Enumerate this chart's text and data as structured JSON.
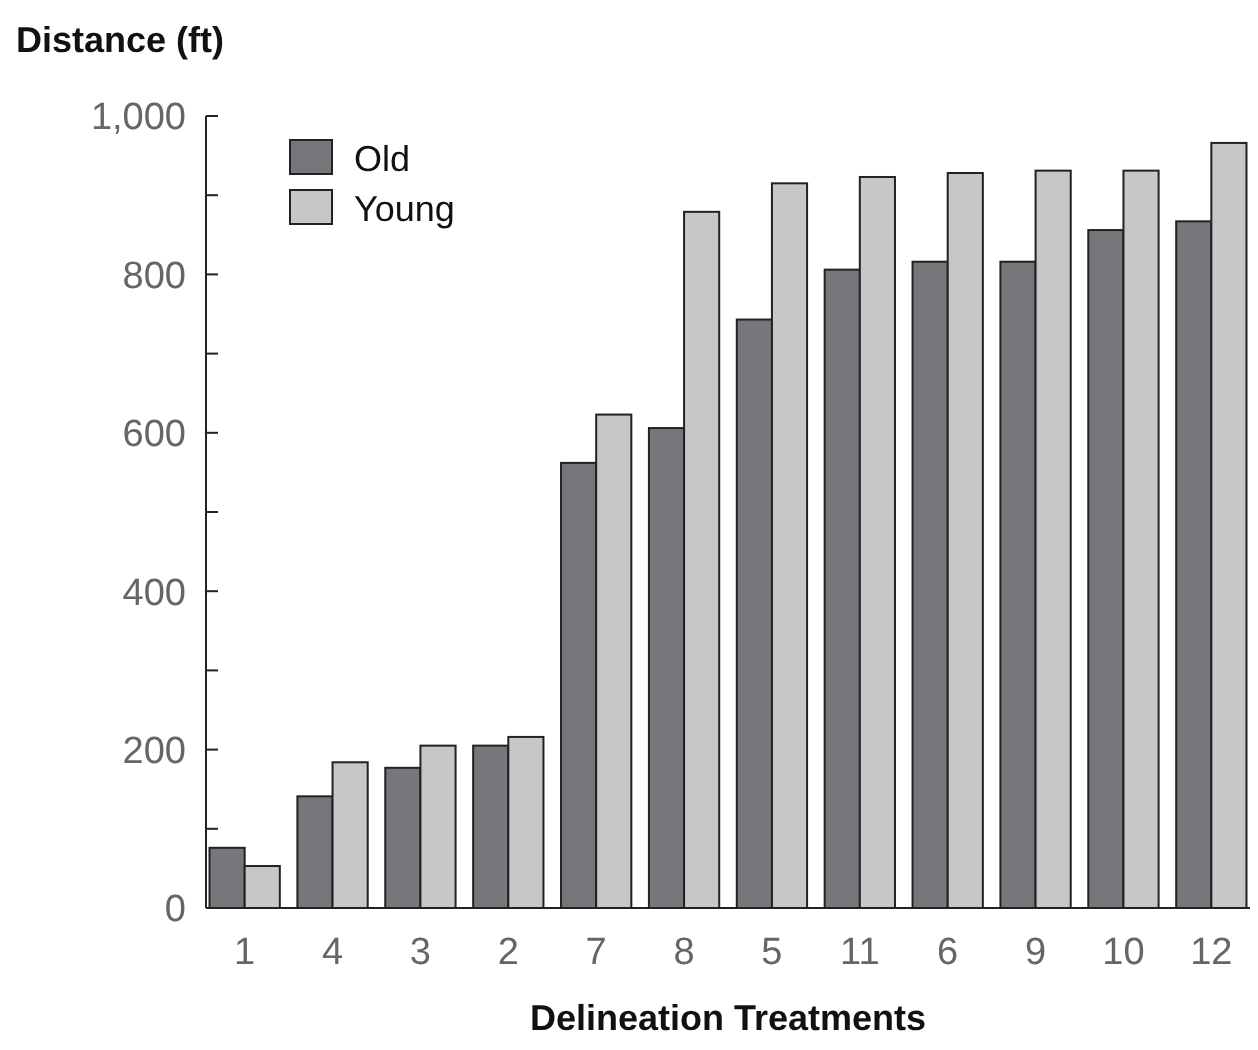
{
  "chart_data": {
    "type": "bar",
    "ylabel": "Distance (ft)",
    "xlabel": "Delineation Treatments",
    "categories": [
      "1",
      "4",
      "3",
      "2",
      "7",
      "8",
      "5",
      "11",
      "6",
      "9",
      "10",
      "12"
    ],
    "series": [
      {
        "name": "Old",
        "color": "#76777a",
        "values": [
          76,
          141,
          177,
          205,
          562,
          606,
          743,
          806,
          816,
          816,
          856,
          867
        ]
      },
      {
        "name": "Young",
        "color": "#c6c7c9",
        "values": [
          53,
          184,
          205,
          216,
          623,
          879,
          915,
          923,
          928,
          931,
          931,
          966
        ]
      }
    ],
    "ylim": [
      0,
      1000
    ],
    "yticks": [
      0,
      {
        "value": 100,
        "label": null
      },
      200,
      {
        "value": 300,
        "label": null
      },
      400,
      {
        "value": 500,
        "label": null
      },
      600,
      {
        "value": 700,
        "label": null
      },
      800,
      {
        "value": 900,
        "label": null
      },
      {
        "value": 1000,
        "label": "1,000"
      }
    ],
    "legend": "top left",
    "grid": false
  }
}
